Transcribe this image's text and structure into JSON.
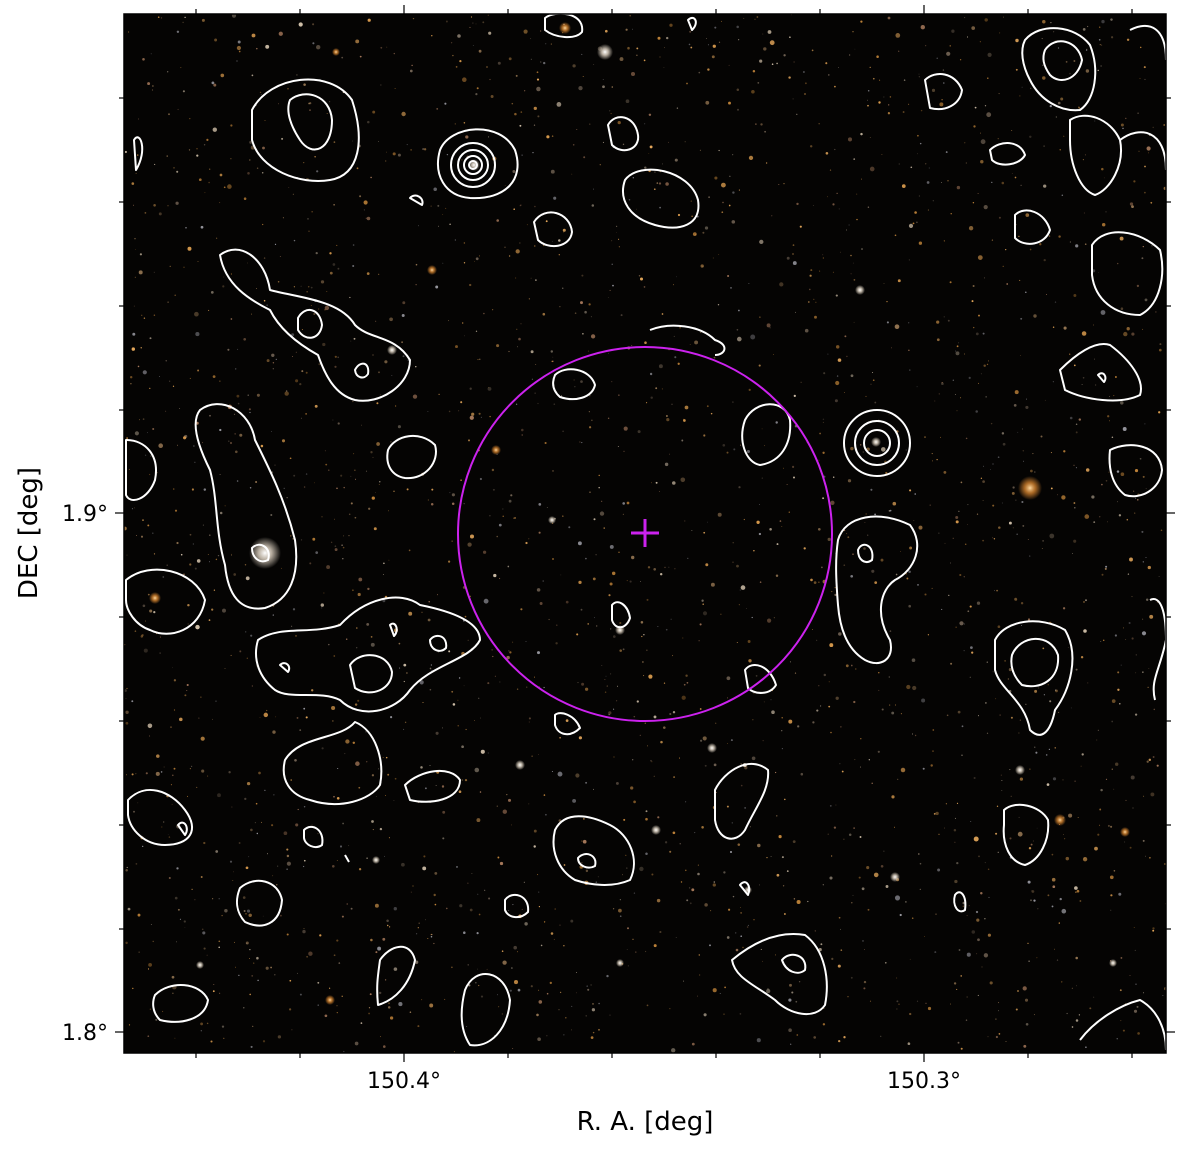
{
  "axes": {
    "xlabel": "R. A. [deg]",
    "ylabel": "DEC [deg]",
    "xticks": [
      {
        "label": "150.4°",
        "value": 150.4
      },
      {
        "label": "150.3°",
        "value": 150.3
      }
    ],
    "yticks": [
      {
        "label": "1.9°",
        "value": 1.9
      },
      {
        "label": "1.8°",
        "value": 1.8
      }
    ]
  },
  "colors": {
    "background": "#050403",
    "contour": "#ffffff",
    "marker": "#cc22ee"
  },
  "overlay": {
    "center_marker": "plus-marker",
    "circle": "magenta-circle"
  }
}
